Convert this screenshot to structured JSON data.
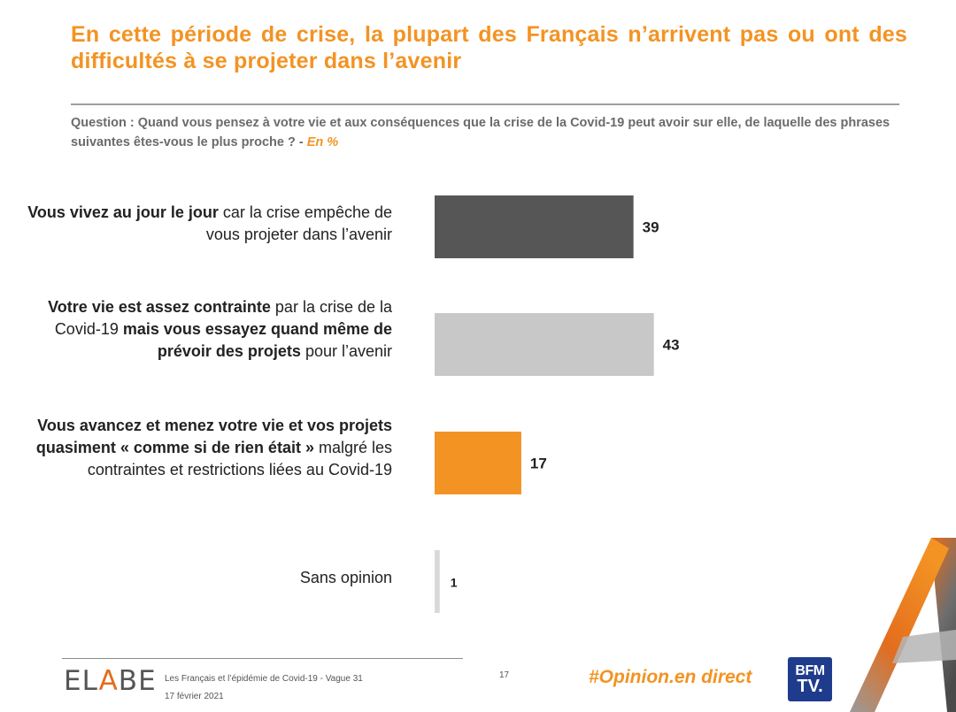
{
  "title": "En cette période de crise, la plupart des Français n’arrivent pas ou ont des difficultés à se projeter dans l’avenir",
  "question": {
    "text": "Question : Quand vous pensez à votre vie et aux conséquences que la crise de la Covid-19 peut avoir sur elle, de laquelle des phrases suivantes êtes-vous le plus proche ? -",
    "unit": "En %"
  },
  "labels": [
    {
      "b1": "Vous vivez au jour le jour",
      "n1": " car la crise empêche de vous projeter dans l’avenir"
    },
    {
      "b1": "Votre vie est assez contrainte",
      "n1": " par la crise de la Covid-19 ",
      "b2": "mais vous essayez quand même de prévoir des projets",
      "n2": " pour l’avenir"
    },
    {
      "b1": "Vous avancez et menez votre vie et vos projets quasiment « comme si de rien était »",
      "n1": " malgré les contraintes et restrictions liées au Covid-19"
    },
    {
      "n1": "Sans opinion"
    }
  ],
  "chart_data": {
    "type": "bar",
    "orientation": "horizontal",
    "categories": [
      "Vous vivez au jour le jour car la crise empêche de vous projeter dans l’avenir",
      "Votre vie est assez contrainte par la crise de la Covid-19 mais vous essayez quand même de prévoir des projets pour l’avenir",
      "Vous avancez et menez votre vie et vos projets quasiment « comme si de rien était » malgré les contraintes et restrictions liées au Covid-19",
      "Sans opinion"
    ],
    "values": [
      39,
      43,
      17,
      1
    ],
    "value_labels": [
      "39",
      "43",
      "17",
      "1"
    ],
    "colors": [
      "#565656",
      "#C8C8C8",
      "#F39323",
      "#D9D9D9"
    ],
    "unit": "En %",
    "xlim": [
      0,
      100
    ],
    "grid": false,
    "legend": "none"
  },
  "footer": {
    "logo_left": "EL",
    "logo_accent": "A",
    "logo_right": "BE",
    "line1": "Les Français et l’épidémie de Covid-19 - Vague 31",
    "line2": "17 février 2021",
    "page": "17",
    "hashtag": "#Opinion.en direct",
    "bfm_top": "BFM",
    "bfm_bottom": "TV."
  },
  "colors": {
    "accent": "#F39323",
    "dark_bar": "#565656",
    "light_bar": "#C8C8C8"
  }
}
